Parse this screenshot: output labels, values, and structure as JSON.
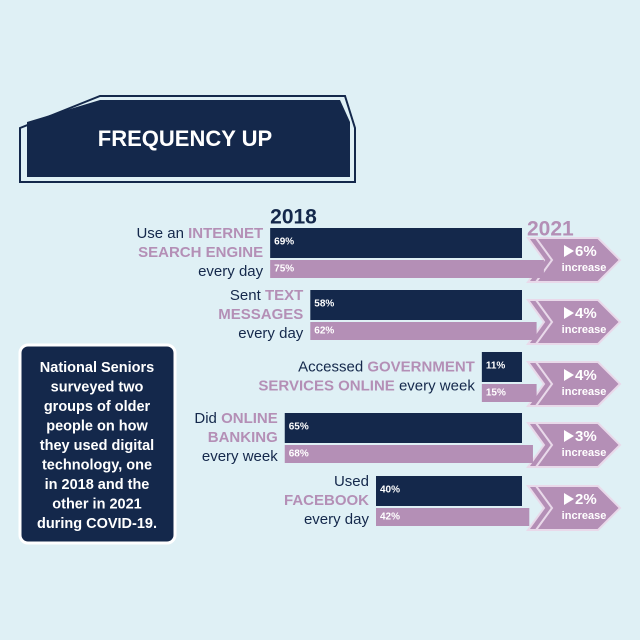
{
  "chart_data": {
    "type": "bar",
    "title": "FREQUENCY UP",
    "note": [
      "National Seniors",
      "surveyed two",
      "groups of older",
      "people on how",
      "they used digital",
      "technology, one",
      "in 2018 and the",
      "other in 2021",
      "during COVID-19."
    ],
    "categories": [
      [
        [
          {
            "text": "Use an ",
            "em": false
          },
          {
            "text": "INTERNET",
            "em": true
          }
        ],
        [
          {
            "text": "SEARCH ENGINE",
            "em": true
          }
        ],
        [
          {
            "text": "every day",
            "em": false
          }
        ]
      ],
      [
        [
          {
            "text": "Sent ",
            "em": false
          },
          {
            "text": "TEXT",
            "em": true
          }
        ],
        [
          {
            "text": "MESSAGES",
            "em": true
          }
        ],
        [
          {
            "text": "every day",
            "em": false
          }
        ]
      ],
      [
        [
          {
            "text": "Accessed ",
            "em": false
          },
          {
            "text": "GOVERNMENT",
            "em": true
          }
        ],
        [
          {
            "text": "SERVICES ONLINE",
            "em": true
          },
          {
            "text": " every week",
            "em": false
          }
        ]
      ],
      [
        [
          {
            "text": "Did ",
            "em": false
          },
          {
            "text": "ONLINE",
            "em": true
          }
        ],
        [
          {
            "text": "BANKING",
            "em": true
          }
        ],
        [
          {
            "text": "every week",
            "em": false
          }
        ]
      ],
      [
        [
          {
            "text": "Used",
            "em": false
          }
        ],
        [
          {
            "text": "FACEBOOK",
            "em": true
          }
        ],
        [
          {
            "text": "every day",
            "em": false
          }
        ]
      ]
    ],
    "series": [
      {
        "name": "2018",
        "color": "#14284b",
        "values": [
          69,
          58,
          11,
          65,
          40
        ],
        "value_labels": [
          "69%",
          "58%",
          "11%",
          "65%",
          "40%"
        ]
      },
      {
        "name": "2021",
        "color": "#b48fb6",
        "values": [
          75,
          62,
          15,
          68,
          42
        ],
        "value_labels": [
          "75%",
          "62%",
          "15%",
          "68%",
          "42%"
        ]
      }
    ],
    "change": {
      "label": "increase",
      "values": [
        6,
        4,
        4,
        3,
        2
      ],
      "value_labels": [
        "6%",
        "4%",
        "4%",
        "3%",
        "2%"
      ]
    }
  }
}
